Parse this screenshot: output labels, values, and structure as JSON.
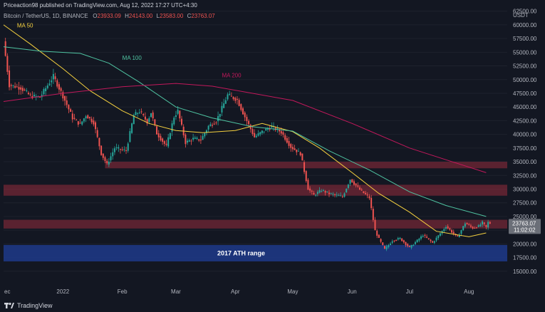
{
  "header": {
    "publish_line": "Priceaction98 published on TradingView.com, Aug 12, 2022 17:27 UTC+4:30",
    "symbol": "Bitcoin / TetherUS, 1D, BINANCE",
    "ohlc": [
      {
        "label": "O",
        "value": "23933.09"
      },
      {
        "label": "H",
        "value": "24143.00"
      },
      {
        "label": "L",
        "value": "23583.00"
      },
      {
        "label": "C",
        "value": "23763.07"
      }
    ]
  },
  "footer": {
    "brand": "TradingView",
    "logo_icon": "tradingview-logo-icon"
  },
  "colors": {
    "background": "#131722",
    "up": "#26a69a",
    "down": "#ef5350",
    "ma50": "#f4d03f",
    "ma100": "#4fc3a1",
    "ma200": "#c2185b",
    "zone": "#8b2a3a",
    "ath_zone": "#1e3a8a",
    "price_label_bg": "#6b6f78"
  },
  "chart_data": {
    "type": "candlestick",
    "currency_label": "USDT",
    "ylim": [
      12500,
      63500
    ],
    "y_ticks": [
      "62500.00",
      "60000.00",
      "57500.00",
      "55000.00",
      "52500.00",
      "50000.00",
      "47500.00",
      "45000.00",
      "42500.00",
      "40000.00",
      "37500.00",
      "35000.00",
      "32500.00",
      "30000.00",
      "27500.00",
      "25000.00",
      "22500.00",
      "20000.00",
      "17500.00",
      "15000.00"
    ],
    "x_range": [
      "2021-12-01",
      "2022-08-21"
    ],
    "x_ticks": [
      {
        "label": "ec",
        "date": "2021-12-01"
      },
      {
        "label": "2022",
        "date": "2022-01-01"
      },
      {
        "label": "Feb",
        "date": "2022-02-01"
      },
      {
        "label": "Mar",
        "date": "2022-03-01"
      },
      {
        "label": "Apr",
        "date": "2022-04-01"
      },
      {
        "label": "May",
        "date": "2022-05-01"
      },
      {
        "label": "Jun",
        "date": "2022-06-01"
      },
      {
        "label": "Jul",
        "date": "2022-07-01"
      },
      {
        "label": "Aug",
        "date": "2022-08-01"
      }
    ],
    "last_price": {
      "value": 23763.07,
      "label": "23763.07",
      "countdown": "11:02:02"
    },
    "price_path": [
      [
        "2021-12-01",
        57000
      ],
      [
        "2021-12-04",
        49000
      ],
      [
        "2021-12-10",
        48500
      ],
      [
        "2021-12-15",
        47000
      ],
      [
        "2021-12-20",
        46800
      ],
      [
        "2021-12-27",
        50600
      ],
      [
        "2022-01-01",
        47000
      ],
      [
        "2022-01-06",
        43000
      ],
      [
        "2022-01-10",
        41800
      ],
      [
        "2022-01-13",
        43500
      ],
      [
        "2022-01-17",
        42200
      ],
      [
        "2022-01-21",
        36500
      ],
      [
        "2022-01-24",
        34500
      ],
      [
        "2022-01-28",
        37500
      ],
      [
        "2022-02-03",
        37000
      ],
      [
        "2022-02-07",
        43500
      ],
      [
        "2022-02-10",
        44200
      ],
      [
        "2022-02-14",
        42300
      ],
      [
        "2022-02-16",
        44000
      ],
      [
        "2022-02-19",
        40200
      ],
      [
        "2022-02-24",
        37800
      ],
      [
        "2022-02-28",
        43200
      ],
      [
        "2022-03-02",
        44300
      ],
      [
        "2022-03-06",
        38500
      ],
      [
        "2022-03-10",
        39200
      ],
      [
        "2022-03-14",
        39000
      ],
      [
        "2022-03-18",
        41500
      ],
      [
        "2022-03-22",
        42400
      ],
      [
        "2022-03-28",
        47200
      ],
      [
        "2022-04-02",
        46300
      ],
      [
        "2022-04-06",
        43200
      ],
      [
        "2022-04-11",
        39500
      ],
      [
        "2022-04-15",
        40500
      ],
      [
        "2022-04-20",
        41400
      ],
      [
        "2022-04-25",
        40400
      ],
      [
        "2022-04-30",
        37700
      ],
      [
        "2022-05-05",
        36500
      ],
      [
        "2022-05-09",
        30100
      ],
      [
        "2022-05-12",
        28900
      ],
      [
        "2022-05-16",
        29800
      ],
      [
        "2022-05-20",
        29200
      ],
      [
        "2022-05-27",
        28600
      ],
      [
        "2022-05-31",
        31800
      ],
      [
        "2022-06-05",
        29900
      ],
      [
        "2022-06-10",
        28400
      ],
      [
        "2022-06-13",
        22400
      ],
      [
        "2022-06-15",
        20900
      ],
      [
        "2022-06-18",
        19000
      ],
      [
        "2022-06-22",
        20600
      ],
      [
        "2022-06-26",
        21000
      ],
      [
        "2022-07-01",
        19300
      ],
      [
        "2022-07-08",
        21600
      ],
      [
        "2022-07-13",
        20200
      ],
      [
        "2022-07-20",
        23200
      ],
      [
        "2022-07-26",
        21200
      ],
      [
        "2022-07-30",
        23800
      ],
      [
        "2022-08-03",
        22900
      ],
      [
        "2022-08-06",
        23200
      ],
      [
        "2022-08-08",
        23900
      ],
      [
        "2022-08-10",
        23000
      ],
      [
        "2022-08-11",
        23950
      ],
      [
        "2022-08-12",
        23763
      ]
    ],
    "moving_averages": [
      {
        "name": "MA 50",
        "color_key": "ma50",
        "points": [
          [
            "2021-12-01",
            60000
          ],
          [
            "2021-12-15",
            56500
          ],
          [
            "2022-01-01",
            52000
          ],
          [
            "2022-01-15",
            48000
          ],
          [
            "2022-02-01",
            44300
          ],
          [
            "2022-02-15",
            42000
          ],
          [
            "2022-03-01",
            40700
          ],
          [
            "2022-03-15",
            40300
          ],
          [
            "2022-04-01",
            40700
          ],
          [
            "2022-04-15",
            42000
          ],
          [
            "2022-05-01",
            40500
          ],
          [
            "2022-05-15",
            37500
          ],
          [
            "2022-06-01",
            33000
          ],
          [
            "2022-06-15",
            29200
          ],
          [
            "2022-07-01",
            25800
          ],
          [
            "2022-07-15",
            22300
          ],
          [
            "2022-08-01",
            21300
          ],
          [
            "2022-08-10",
            22000
          ]
        ]
      },
      {
        "name": "MA 100",
        "color_key": "ma100",
        "points": [
          [
            "2021-12-01",
            56000
          ],
          [
            "2021-12-20",
            55200
          ],
          [
            "2022-01-10",
            54800
          ],
          [
            "2022-01-25",
            53000
          ],
          [
            "2022-02-10",
            49500
          ],
          [
            "2022-03-01",
            45000
          ],
          [
            "2022-03-20",
            43000
          ],
          [
            "2022-04-10",
            41400
          ],
          [
            "2022-05-01",
            40600
          ],
          [
            "2022-05-20",
            37000
          ],
          [
            "2022-06-10",
            33500
          ],
          [
            "2022-07-01",
            29500
          ],
          [
            "2022-07-20",
            27000
          ],
          [
            "2022-08-10",
            25000
          ]
        ]
      },
      {
        "name": "MA 200",
        "color_key": "ma200",
        "points": [
          [
            "2021-12-01",
            46000
          ],
          [
            "2022-01-01",
            47500
          ],
          [
            "2022-02-01",
            48700
          ],
          [
            "2022-03-01",
            49300
          ],
          [
            "2022-03-20",
            48800
          ],
          [
            "2022-04-10",
            47500
          ],
          [
            "2022-05-01",
            46200
          ],
          [
            "2022-06-01",
            42000
          ],
          [
            "2022-07-01",
            37500
          ],
          [
            "2022-08-10",
            33000
          ]
        ]
      }
    ],
    "zones": [
      {
        "from_date": "2022-01-23",
        "to_date": "2022-08-21",
        "low": 33800,
        "high": 35000,
        "color_key": "zone"
      },
      {
        "from_date": "2021-12-01",
        "to_date": "2022-08-21",
        "low": 28800,
        "high": 30800,
        "color_key": "zone"
      },
      {
        "from_date": "2021-12-01",
        "to_date": "2022-08-21",
        "low": 22800,
        "high": 24400,
        "color_key": "zone"
      },
      {
        "from_date": "2021-12-01",
        "to_date": "2022-08-21",
        "low": 16800,
        "high": 19800,
        "color_key": "ath_zone",
        "label": "2017 ATH range"
      }
    ],
    "annotations": [
      {
        "text": "MA 50",
        "date": "2021-12-08",
        "price": 59500,
        "color_key": "ma50"
      },
      {
        "text": "MA 100",
        "date": "2022-02-01",
        "price": 53600,
        "color_key": "ma100"
      },
      {
        "text": "MA 200",
        "date": "2022-03-25",
        "price": 50400,
        "color_key": "ma200"
      }
    ]
  }
}
